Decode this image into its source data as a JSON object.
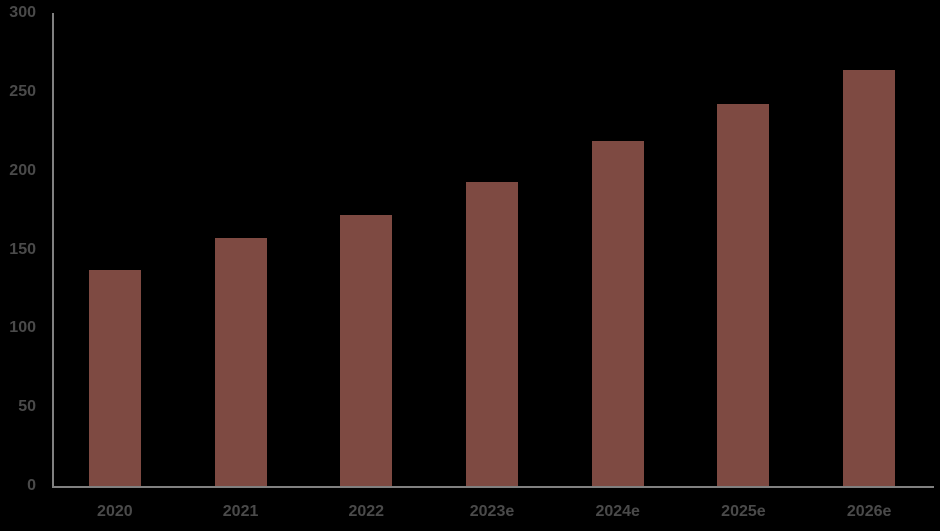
{
  "chart_data": {
    "type": "bar",
    "title": "",
    "xlabel": "",
    "ylabel": "",
    "categories": [
      "2020",
      "2021",
      "2022",
      "2023e",
      "2024e",
      "2025e",
      "2026e"
    ],
    "values": [
      137,
      157,
      172,
      193,
      219,
      242,
      264
    ],
    "ylim": [
      0,
      300
    ],
    "yticks": [
      0,
      50,
      100,
      150,
      200,
      250,
      300
    ],
    "grid": false,
    "legend": false,
    "colors": {
      "bar": "#7E4A42",
      "axis_line": "#808080",
      "tick_label": "#4A4A4A",
      "background": "#000000"
    }
  }
}
